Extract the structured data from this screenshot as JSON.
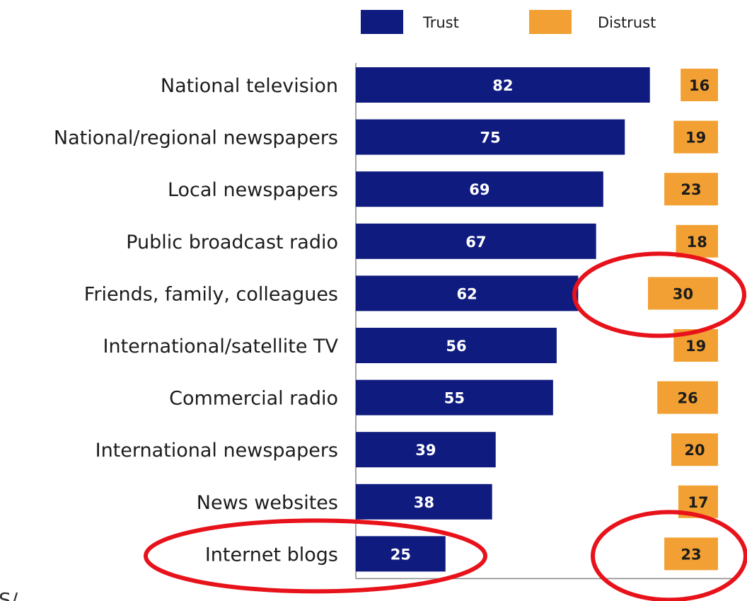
{
  "chart_data": {
    "type": "bar",
    "orientation": "horizontal",
    "legend": {
      "placement": "top",
      "entries": [
        "Trust",
        "Distrust"
      ]
    },
    "categories": [
      "National television",
      "National/regional newspapers",
      "Local newspapers",
      "Public broadcast radio",
      "Friends, family, colleagues",
      "International/satellite TV",
      "Commercial radio",
      "International newspapers",
      "News websites",
      "Internet blogs"
    ],
    "series": [
      {
        "name": "Trust",
        "color": "#0f1b7f",
        "values": [
          82,
          75,
          69,
          67,
          62,
          56,
          55,
          39,
          38,
          25
        ]
      },
      {
        "name": "Distrust",
        "color": "#f2a033",
        "values": [
          16,
          19,
          23,
          18,
          30,
          19,
          26,
          20,
          17,
          23
        ]
      }
    ],
    "annotations": [
      {
        "shape": "ellipse",
        "color": "#e8121b",
        "target": "Friends, family, colleagues - Distrust"
      },
      {
        "shape": "ellipse",
        "color": "#e8121b",
        "target": "Internet blogs - Trust"
      },
      {
        "shape": "ellipse",
        "color": "#e8121b",
        "target": "Internet blogs - Distrust"
      }
    ],
    "grid": false
  },
  "footer_fragment": "S/"
}
